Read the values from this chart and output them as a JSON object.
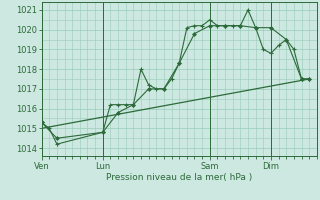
{
  "xlabel": "Pression niveau de la mer( hPa )",
  "bg_color": "#cce8e0",
  "plot_bg_color": "#cce8e0",
  "line_color": "#2d6a3a",
  "grid_color": "#99ccbb",
  "ylim": [
    1013.6,
    1021.4
  ],
  "yticks": [
    1014,
    1015,
    1016,
    1017,
    1018,
    1019,
    1020,
    1021
  ],
  "day_labels": [
    "Ven",
    "Lun",
    "Sam",
    "Dim"
  ],
  "day_positions": [
    0,
    8,
    22,
    30
  ],
  "xlim": [
    0,
    36
  ],
  "series1_x": [
    0,
    1,
    2,
    8,
    9,
    10,
    11,
    12,
    13,
    14,
    15,
    16,
    17,
    18,
    19,
    20,
    21,
    22,
    23,
    24,
    25,
    26,
    27,
    28,
    29,
    30,
    31,
    32,
    33,
    34,
    35
  ],
  "series1_y": [
    1015.3,
    1015.0,
    1014.2,
    1014.8,
    1016.2,
    1016.2,
    1016.2,
    1016.2,
    1018.0,
    1017.2,
    1017.0,
    1017.0,
    1017.5,
    1018.3,
    1020.1,
    1020.2,
    1020.2,
    1020.5,
    1020.2,
    1020.2,
    1020.2,
    1020.2,
    1021.0,
    1020.1,
    1019.0,
    1018.8,
    1019.2,
    1019.5,
    1019.0,
    1017.5,
    1017.5
  ],
  "series2_x": [
    0,
    2,
    8,
    10,
    12,
    14,
    16,
    18,
    20,
    22,
    24,
    26,
    28,
    30,
    32,
    34,
    35
  ],
  "series2_y": [
    1015.3,
    1014.5,
    1014.8,
    1015.8,
    1016.2,
    1017.0,
    1017.0,
    1018.3,
    1019.8,
    1020.2,
    1020.2,
    1020.2,
    1020.1,
    1020.1,
    1019.5,
    1017.5,
    1017.5
  ],
  "trend_x": [
    0,
    35
  ],
  "trend_y": [
    1015.0,
    1017.5
  ]
}
